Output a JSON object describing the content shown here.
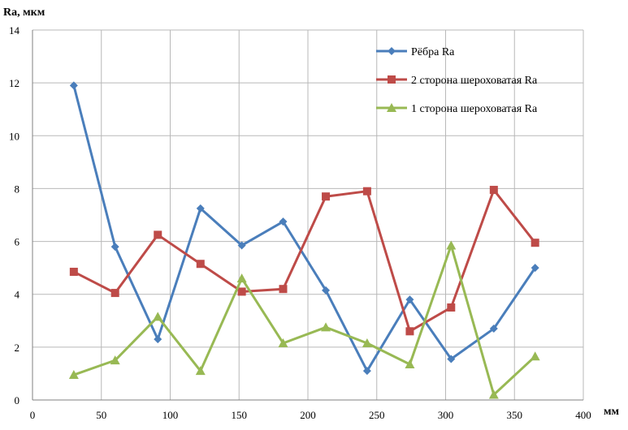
{
  "chart_data": {
    "type": "line",
    "title": "",
    "ylabel": "Ra, мкм",
    "xlabel": "мм",
    "xlim": [
      0,
      400
    ],
    "ylim": [
      0,
      14
    ],
    "x_ticks": [
      0,
      50,
      100,
      150,
      200,
      250,
      300,
      350,
      400
    ],
    "y_ticks": [
      0,
      2,
      4,
      6,
      8,
      10,
      12,
      14
    ],
    "grid": true,
    "legend_position": "top-right",
    "series": [
      {
        "name": "Рёбра Ra",
        "color": "#4a7ebb",
        "marker": "diamond",
        "x": [
          30,
          60,
          91,
          122,
          152,
          182,
          213,
          243,
          274,
          304,
          335,
          365
        ],
        "y": [
          11.9,
          5.8,
          2.3,
          7.25,
          5.85,
          6.75,
          4.15,
          1.1,
          3.8,
          1.55,
          2.7,
          5.0
        ]
      },
      {
        "name": "2 сторона шероховатая Ra",
        "color": "#be4b48",
        "marker": "square",
        "x": [
          30,
          60,
          91,
          122,
          152,
          182,
          213,
          243,
          274,
          304,
          335,
          365
        ],
        "y": [
          4.85,
          4.05,
          6.25,
          5.15,
          4.1,
          4.2,
          7.7,
          7.9,
          2.6,
          3.5,
          7.95,
          5.95
        ]
      },
      {
        "name": "1 сторона шероховатая Ra",
        "color": "#98b954",
        "marker": "triangle",
        "x": [
          30,
          60,
          91,
          122,
          152,
          182,
          213,
          243,
          274,
          304,
          335,
          365
        ],
        "y": [
          0.95,
          1.5,
          3.15,
          1.1,
          4.6,
          2.15,
          2.75,
          2.15,
          1.35,
          5.85,
          0.2,
          1.65
        ]
      }
    ]
  }
}
